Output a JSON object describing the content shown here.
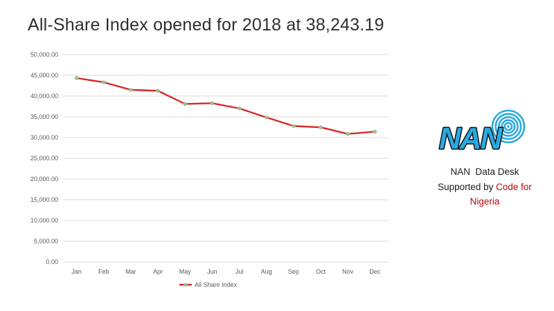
{
  "slide": {
    "title": "All-Share Index opened for 2018 at 38,243.19"
  },
  "chart_data": {
    "type": "line",
    "title": "",
    "xlabel": "",
    "ylabel": "",
    "categories": [
      "Jan",
      "Feb",
      "Mar",
      "Apr",
      "May",
      "Jun",
      "Jul",
      "Aug",
      "Sep",
      "Oct",
      "Nov",
      "Dec"
    ],
    "series": [
      {
        "name": "All Share Index",
        "values": [
          44340,
          43330,
          41500,
          41270,
          38100,
          38280,
          37020,
          34850,
          32770,
          32470,
          30870,
          31430
        ]
      }
    ],
    "ylim": [
      0,
      50000
    ],
    "y_tick_step": 5000,
    "y_tick_labels": [
      "0.00",
      "5,000.00",
      "10,000.00",
      "15,000.00",
      "20,000.00",
      "25,000.00",
      "30,000.00",
      "35,000.00",
      "40,000.00",
      "45,000.00",
      "50,000.00"
    ],
    "grid": true,
    "legend_position": "bottom",
    "line_color": "#d42a28",
    "marker_color": "#9cbf94",
    "axis_label_color": "#595959",
    "gridline_color": "#d9d9d9"
  },
  "branding": {
    "logo_text": "NAN",
    "logo_blue": "#29a9e0",
    "logo_outline": "#111111",
    "caption_line1": "NAN  Data Desk",
    "caption_supported_prefix": "Supported by ",
    "caption_supported_highlight": "Code for Nigeria",
    "highlight_color": "#c00000"
  }
}
